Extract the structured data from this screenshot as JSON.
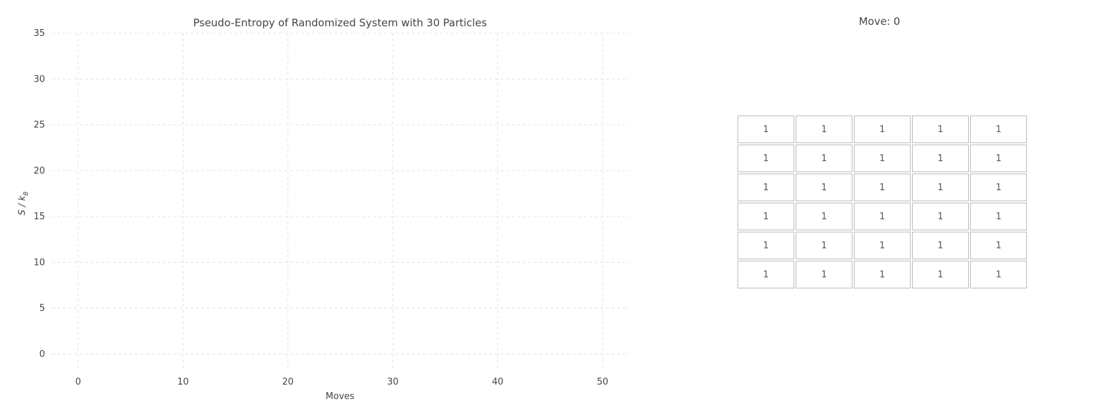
{
  "chart_data": {
    "type": "line",
    "title": "Pseudo-Entropy of Randomized System with 30 Particles",
    "xlabel": "Moves",
    "ylabel": "S / k",
    "ylabel_subscript": "B",
    "xlim": [
      -2.5,
      52.5
    ],
    "ylim": [
      -1.75,
      35
    ],
    "xticks": [
      0,
      10,
      20,
      30,
      40,
      50
    ],
    "yticks": [
      0,
      5,
      10,
      15,
      20,
      25,
      30,
      35
    ],
    "grid": true,
    "series": []
  },
  "grid_panel": {
    "title": "Move: 0",
    "rows": [
      [
        "1",
        "1",
        "1",
        "1",
        "1"
      ],
      [
        "1",
        "1",
        "1",
        "1",
        "1"
      ],
      [
        "1",
        "1",
        "1",
        "1",
        "1"
      ],
      [
        "1",
        "1",
        "1",
        "1",
        "1"
      ],
      [
        "1",
        "1",
        "1",
        "1",
        "1"
      ],
      [
        "1",
        "1",
        "1",
        "1",
        "1"
      ]
    ]
  }
}
